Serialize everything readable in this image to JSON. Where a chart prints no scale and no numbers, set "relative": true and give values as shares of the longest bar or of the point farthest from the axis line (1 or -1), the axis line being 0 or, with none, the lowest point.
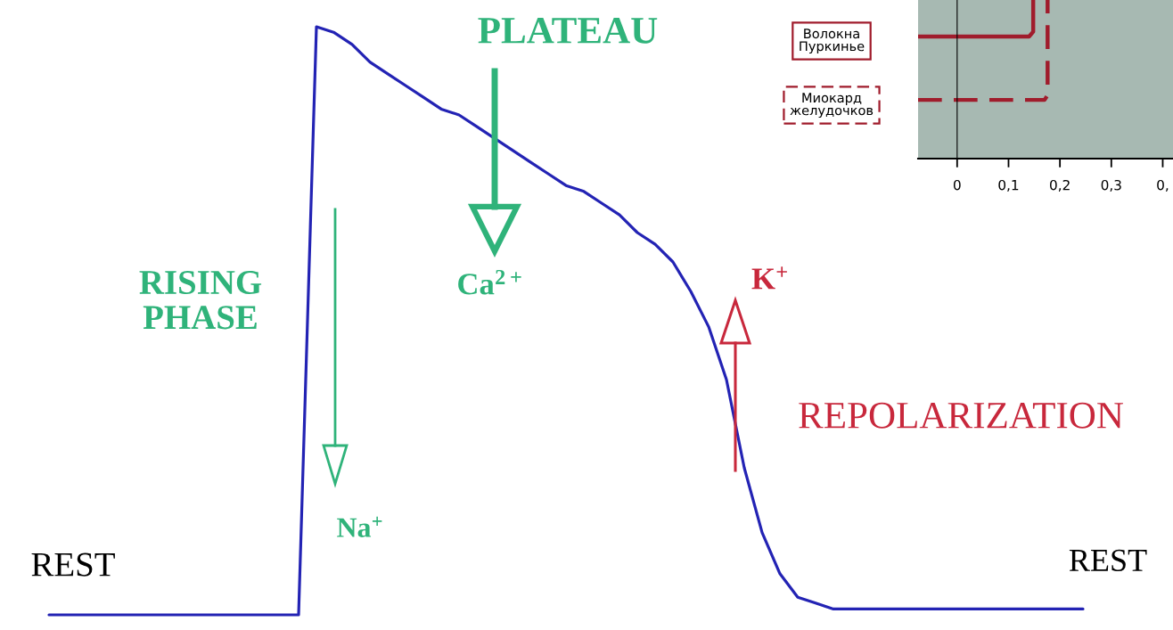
{
  "chart_data": [
    {
      "type": "line",
      "relative": true,
      "categories": [
        null,
        null,
        null,
        null,
        null,
        null,
        null,
        null,
        null,
        null,
        null,
        null,
        null,
        null,
        null,
        null,
        null,
        null,
        null,
        null,
        null,
        null,
        null,
        null,
        null,
        null,
        null,
        null,
        null,
        null,
        null,
        null,
        null,
        null,
        null,
        null,
        null,
        null,
        null,
        null,
        null,
        null,
        null,
        null,
        null,
        null,
        null,
        null,
        null,
        null,
        null,
        null,
        null,
        null,
        null,
        null,
        null,
        null,
        null
      ],
      "series": [
        {
          "color": "#2323b4",
          "values": [
            0,
            0,
            0,
            0,
            0,
            0,
            0,
            0,
            0,
            0,
            0,
            0,
            0,
            0,
            0,
            1.0,
            0.99,
            0.97,
            0.94,
            0.92,
            0.9,
            0.88,
            0.86,
            0.85,
            0.83,
            0.81,
            0.79,
            0.77,
            0.75,
            0.73,
            0.72,
            0.7,
            0.68,
            0.65,
            0.63,
            0.6,
            0.55,
            0.49,
            0.4,
            0.25,
            0.14,
            0.07,
            0.03,
            0.02,
            0.01,
            0.01,
            0.01,
            0.01,
            0.01,
            0.01,
            0.01,
            0.01,
            0.01,
            0.01,
            0.01,
            0.01,
            0.01,
            0.01,
            0.01
          ]
        }
      ],
      "annotations": [
        "PLATEAU",
        "Ca$^{2+}$",
        "RISING\nPHASE",
        "Na$^{+}$",
        "K$^{+}$",
        "REPOLARIZATION",
        "REST",
        "REST"
      ]
    },
    {
      "type": "line",
      "relative": true,
      "tick_labels": "x",
      "legend": "left",
      "xlim": [
        -0.076,
        0.42
      ],
      "xticks": [
        0,
        {
          "value": 0.1,
          "label": "0,1"
        },
        {
          "value": 0.2,
          "label": "0,2"
        },
        {
          "value": 0.3,
          "label": "0,3"
        },
        {
          "value": 0.4,
          "label": "0,"
        }
      ],
      "series": [
        {
          "name": "Волокна\nПуркинье",
          "color": "#a01c2c",
          "line_style": "solid",
          "x": [
            -0.076,
            0.14,
            0.148,
            0.148
          ],
          "values": [
            0.77,
            0.77,
            0.8,
            1.0
          ]
        },
        {
          "name": "Миокард\nжелудочков",
          "color": "#a01c2c",
          "line_style": "dashed",
          "x": [
            -0.076,
            0.17,
            0.176,
            0.176
          ],
          "values": [
            0.37,
            0.37,
            0.4,
            1.0
          ]
        }
      ]
    }
  ]
}
